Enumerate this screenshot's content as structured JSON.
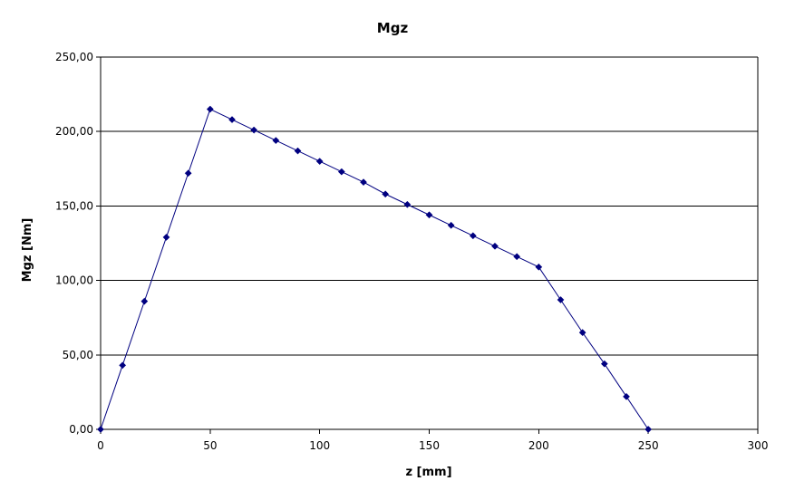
{
  "chart_data": {
    "type": "line",
    "title": "Mgz",
    "xlabel": "z [mm]",
    "ylabel": "Mgz [Nm]",
    "xlim": [
      0,
      300
    ],
    "ylim": [
      0,
      250
    ],
    "x_ticks": [
      0,
      50,
      100,
      150,
      200,
      250,
      300
    ],
    "x_tick_labels": [
      "0",
      "50",
      "100",
      "150",
      "200",
      "250",
      "300"
    ],
    "y_ticks": [
      0,
      50,
      100,
      150,
      200,
      250
    ],
    "y_tick_labels": [
      "0,00",
      "50,00",
      "100,00",
      "150,00",
      "200,00",
      "250,00"
    ],
    "grid": "horizontal",
    "legend": "none",
    "series": [
      {
        "color": "#000080",
        "marker": "diamond",
        "x": [
          0,
          10,
          20,
          30,
          40,
          50,
          60,
          70,
          80,
          90,
          100,
          110,
          120,
          130,
          140,
          150,
          160,
          170,
          180,
          190,
          200,
          210,
          220,
          230,
          240,
          250
        ],
        "y": [
          0,
          43,
          86,
          129,
          172,
          215,
          208,
          201,
          194,
          187,
          180,
          173,
          166,
          158,
          151,
          144,
          137,
          130,
          123,
          116,
          109,
          87,
          65,
          44,
          22,
          0
        ]
      }
    ]
  }
}
